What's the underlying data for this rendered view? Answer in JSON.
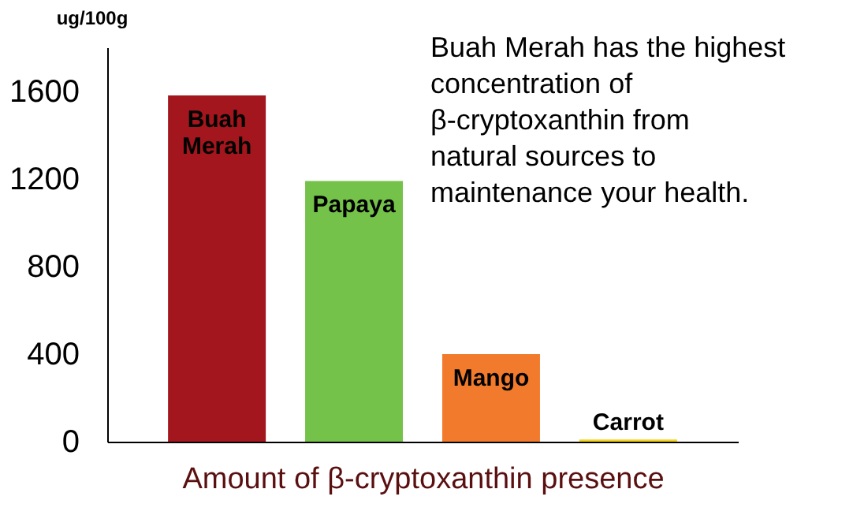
{
  "chart_data": {
    "type": "bar",
    "categories": [
      "Buah Merah",
      "Papaya",
      "Mango",
      "Carrot"
    ],
    "values": [
      1580,
      1190,
      400,
      10
    ],
    "colors": [
      "#a3161d",
      "#74c24a",
      "#f27a2c",
      "#f2d41c"
    ],
    "ylabel": "ug/100g",
    "xlabel": "Amount of β-cryptoxanthin presence",
    "annotations": [
      "Buah Merah has the highest concentration of β-cryptoxanthin from natural sources to maintenance your health."
    ],
    "ylim": [
      0,
      1800
    ],
    "yticks": [
      0,
      400,
      800,
      1200,
      1600
    ],
    "grid": false,
    "tick_labels": "y"
  }
}
